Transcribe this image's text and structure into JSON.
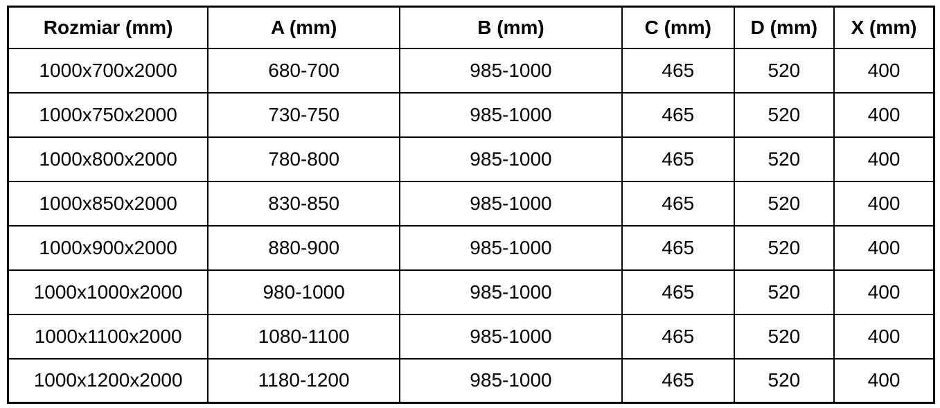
{
  "table": {
    "columns": [
      "Rozmiar (mm)",
      "A (mm)",
      "B (mm)",
      "C (mm)",
      "D (mm)",
      "X (mm)"
    ],
    "rows": [
      [
        "1000x700x2000",
        "680-700",
        "985-1000",
        "465",
        "520",
        "400"
      ],
      [
        "1000x750x2000",
        "730-750",
        "985-1000",
        "465",
        "520",
        "400"
      ],
      [
        "1000x800x2000",
        "780-800",
        "985-1000",
        "465",
        "520",
        "400"
      ],
      [
        "1000x850x2000",
        "830-850",
        "985-1000",
        "465",
        "520",
        "400"
      ],
      [
        "1000x900x2000",
        "880-900",
        "985-1000",
        "465",
        "520",
        "400"
      ],
      [
        "1000x1000x2000",
        "980-1000",
        "985-1000",
        "465",
        "520",
        "400"
      ],
      [
        "1000x1100x2000",
        "1080-1100",
        "985-1000",
        "465",
        "520",
        "400"
      ],
      [
        "1000x1200x2000",
        "1180-1200",
        "985-1000",
        "465",
        "520",
        "400"
      ]
    ]
  },
  "colors": {
    "border": "#000000",
    "background": "#ffffff",
    "text": "#000000"
  }
}
